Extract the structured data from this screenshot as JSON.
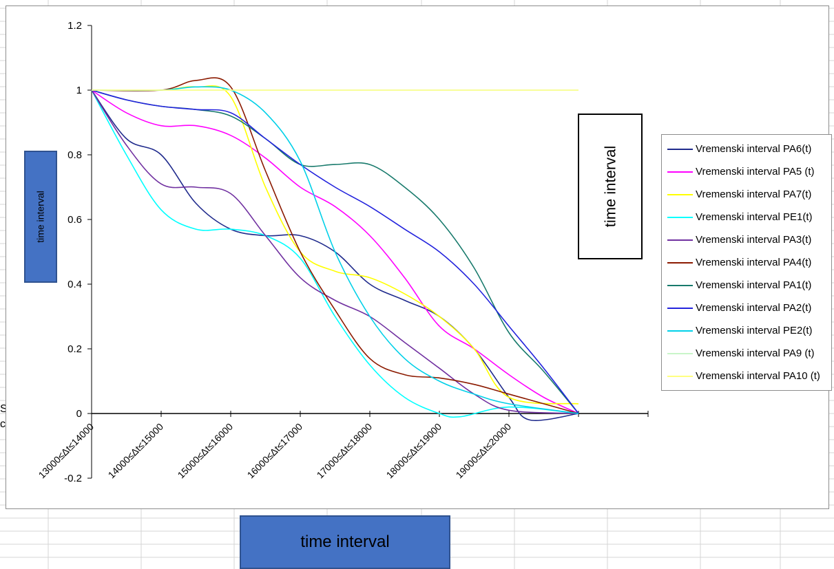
{
  "chart_data": {
    "type": "line",
    "title": "",
    "xlabel": "time interval",
    "ylabel": "time interval",
    "side_label": "time interval",
    "categories": [
      "13000≤Δt≤14000",
      "14000≤Δt≤15000",
      "15000≤Δt≤16000",
      "16000≤Δt≤17000",
      "17000≤Δt≤18000",
      "18000≤Δt≤19000",
      "19000≤Δt≤20000"
    ],
    "ylim": [
      -0.2,
      1.2
    ],
    "yticks": [
      "1.2",
      "1",
      "0.8",
      "0.6",
      "0.4",
      "0.2",
      "0",
      "-0.2"
    ],
    "grid": false,
    "legend_position": "right",
    "series": [
      {
        "name": "Vremenski interval PA6(t)",
        "color": "#1f2a8c",
        "points": [
          [
            0,
            1
          ],
          [
            0.5,
            0.85
          ],
          [
            1,
            0.8
          ],
          [
            1.5,
            0.65
          ],
          [
            2,
            0.57
          ],
          [
            2.5,
            0.55
          ],
          [
            3,
            0.55
          ],
          [
            3.5,
            0.5
          ],
          [
            4,
            0.4
          ],
          [
            4.5,
            0.35
          ],
          [
            5,
            0.3
          ],
          [
            5.5,
            0.2
          ],
          [
            6,
            0.05
          ],
          [
            6.3,
            -0.02
          ],
          [
            7,
            0
          ]
        ]
      },
      {
        "name": "Vremenski interval PA5 (t)",
        "color": "#ff00ff",
        "points": [
          [
            0,
            1
          ],
          [
            0.5,
            0.93
          ],
          [
            1,
            0.89
          ],
          [
            1.5,
            0.89
          ],
          [
            2,
            0.86
          ],
          [
            2.5,
            0.79
          ],
          [
            3,
            0.7
          ],
          [
            3.5,
            0.64
          ],
          [
            4,
            0.55
          ],
          [
            4.5,
            0.42
          ],
          [
            5,
            0.27
          ],
          [
            5.5,
            0.2
          ],
          [
            6,
            0.12
          ],
          [
            6.5,
            0.05
          ],
          [
            7,
            0
          ]
        ]
      },
      {
        "name": "Vremenski interval PA7(t)",
        "color": "#ffff00",
        "points": [
          [
            0,
            1
          ],
          [
            1,
            1
          ],
          [
            1.5,
            1.01
          ],
          [
            2,
            0.98
          ],
          [
            2.5,
            0.7
          ],
          [
            3,
            0.5
          ],
          [
            3.5,
            0.44
          ],
          [
            4,
            0.42
          ],
          [
            4.5,
            0.37
          ],
          [
            5,
            0.3
          ],
          [
            5.5,
            0.2
          ],
          [
            6,
            0.05
          ],
          [
            7,
            0.03
          ]
        ]
      },
      {
        "name": "Vremenski interval PE1(t)",
        "color": "#00ffff",
        "points": [
          [
            0,
            1
          ],
          [
            0.5,
            0.8
          ],
          [
            1,
            0.63
          ],
          [
            1.5,
            0.57
          ],
          [
            2,
            0.57
          ],
          [
            2.5,
            0.55
          ],
          [
            3,
            0.48
          ],
          [
            3.5,
            0.3
          ],
          [
            4,
            0.15
          ],
          [
            4.5,
            0.05
          ],
          [
            5,
            0
          ],
          [
            5.3,
            -0.01
          ],
          [
            6,
            0.02
          ],
          [
            7,
            0
          ]
        ]
      },
      {
        "name": "Vremenski interval PA3(t)",
        "color": "#7030a0",
        "points": [
          [
            0,
            1
          ],
          [
            0.5,
            0.83
          ],
          [
            1,
            0.71
          ],
          [
            1.5,
            0.7
          ],
          [
            2,
            0.68
          ],
          [
            2.5,
            0.55
          ],
          [
            3,
            0.42
          ],
          [
            3.5,
            0.35
          ],
          [
            4,
            0.3
          ],
          [
            4.5,
            0.22
          ],
          [
            5,
            0.14
          ],
          [
            5.5,
            0.06
          ],
          [
            6,
            0.01
          ],
          [
            7,
            0
          ]
        ]
      },
      {
        "name": "Vremenski interval PA4(t)",
        "color": "#8b1a00",
        "points": [
          [
            0,
            1
          ],
          [
            1,
            1
          ],
          [
            1.5,
            1.03
          ],
          [
            2,
            1.01
          ],
          [
            2.5,
            0.75
          ],
          [
            3,
            0.5
          ],
          [
            3.5,
            0.32
          ],
          [
            4,
            0.17
          ],
          [
            4.5,
            0.12
          ],
          [
            5,
            0.11
          ],
          [
            5.5,
            0.09
          ],
          [
            6,
            0.06
          ],
          [
            7,
            0
          ]
        ]
      },
      {
        "name": "Vremenski interval PA1(t)",
        "color": "#187a6c",
        "points": [
          [
            0,
            1
          ],
          [
            0.5,
            0.97
          ],
          [
            1,
            0.95
          ],
          [
            1.5,
            0.94
          ],
          [
            2,
            0.92
          ],
          [
            2.5,
            0.85
          ],
          [
            3,
            0.77
          ],
          [
            3.5,
            0.77
          ],
          [
            4,
            0.77
          ],
          [
            4.5,
            0.7
          ],
          [
            5,
            0.6
          ],
          [
            5.5,
            0.45
          ],
          [
            6,
            0.25
          ],
          [
            6.5,
            0.13
          ],
          [
            7,
            0
          ]
        ]
      },
      {
        "name": "Vremenski interval PA2(t)",
        "color": "#2222dd",
        "points": [
          [
            0,
            1
          ],
          [
            0.5,
            0.97
          ],
          [
            1,
            0.95
          ],
          [
            1.5,
            0.94
          ],
          [
            2,
            0.93
          ],
          [
            2.5,
            0.85
          ],
          [
            3,
            0.77
          ],
          [
            3.5,
            0.7
          ],
          [
            4,
            0.64
          ],
          [
            4.5,
            0.57
          ],
          [
            5,
            0.5
          ],
          [
            5.5,
            0.4
          ],
          [
            6,
            0.27
          ],
          [
            6.5,
            0.14
          ],
          [
            7,
            0
          ]
        ]
      },
      {
        "name": "Vremenski interval PE2(t)",
        "color": "#00d0e8",
        "points": [
          [
            0,
            1
          ],
          [
            1,
            1
          ],
          [
            1.5,
            1.01
          ],
          [
            2,
            1
          ],
          [
            2.5,
            0.93
          ],
          [
            3,
            0.78
          ],
          [
            3.5,
            0.5
          ],
          [
            4,
            0.3
          ],
          [
            4.5,
            0.17
          ],
          [
            5,
            0.1
          ],
          [
            5.5,
            0.06
          ],
          [
            6,
            0.03
          ],
          [
            7,
            0
          ]
        ]
      },
      {
        "name": "Vremenski interval PA9 (t)",
        "color": "#c8f5c8",
        "points": [
          [
            0,
            1
          ],
          [
            7,
            1
          ]
        ]
      },
      {
        "name": "Vremenski interval PA10 (t)",
        "color": "#ffff80",
        "points": [
          [
            0,
            1
          ],
          [
            7,
            1
          ]
        ]
      }
    ]
  },
  "left_fragments": [
    "S",
    "c"
  ],
  "colors": {
    "label_box_fill": "#4472c4",
    "axis": "#000000"
  }
}
